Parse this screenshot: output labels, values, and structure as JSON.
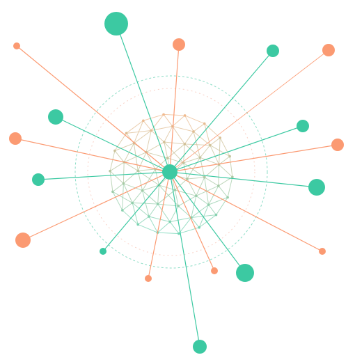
{
  "colors": {
    "teal": "#3cc9a2",
    "salmon": "#fb9a72",
    "mesh_top": "#f3b98d",
    "mesh_bottom": "#6fd6b6",
    "ring": "#7fd9c0",
    "ring_inner": "#f5b3a0",
    "background": "#ffffff"
  },
  "hub": {
    "name": "central-hub",
    "color": "teal"
  },
  "spokes": [
    {
      "name": "spoke-teal-top-large",
      "color": "teal",
      "size": "large"
    },
    {
      "name": "spoke-salmon-top",
      "color": "salmon",
      "size": "medium"
    },
    {
      "name": "spoke-teal-top-right",
      "color": "teal",
      "size": "medium"
    },
    {
      "name": "spoke-salmon-top-right",
      "color": "salmon",
      "size": "medium"
    },
    {
      "name": "spoke-teal-right-upper",
      "color": "teal",
      "size": "medium"
    },
    {
      "name": "spoke-salmon-right-upper",
      "color": "salmon",
      "size": "medium"
    },
    {
      "name": "spoke-teal-right",
      "color": "teal",
      "size": "large"
    },
    {
      "name": "spoke-salmon-right-lower",
      "color": "salmon",
      "size": "small"
    },
    {
      "name": "spoke-teal-bottom-right",
      "color": "teal",
      "size": "large"
    },
    {
      "name": "spoke-salmon-bottom-right",
      "color": "salmon",
      "size": "small"
    },
    {
      "name": "spoke-teal-bottom",
      "color": "teal",
      "size": "medium"
    },
    {
      "name": "spoke-salmon-bottom",
      "color": "salmon",
      "size": "small"
    },
    {
      "name": "spoke-teal-bottom-left",
      "color": "teal",
      "size": "small"
    },
    {
      "name": "spoke-salmon-left-lower",
      "color": "salmon",
      "size": "large"
    },
    {
      "name": "spoke-teal-left",
      "color": "teal",
      "size": "medium"
    },
    {
      "name": "spoke-salmon-left",
      "color": "salmon",
      "size": "medium"
    },
    {
      "name": "spoke-teal-left-upper",
      "color": "teal",
      "size": "medium"
    },
    {
      "name": "spoke-salmon-top-left",
      "color": "salmon",
      "size": "small"
    }
  ]
}
